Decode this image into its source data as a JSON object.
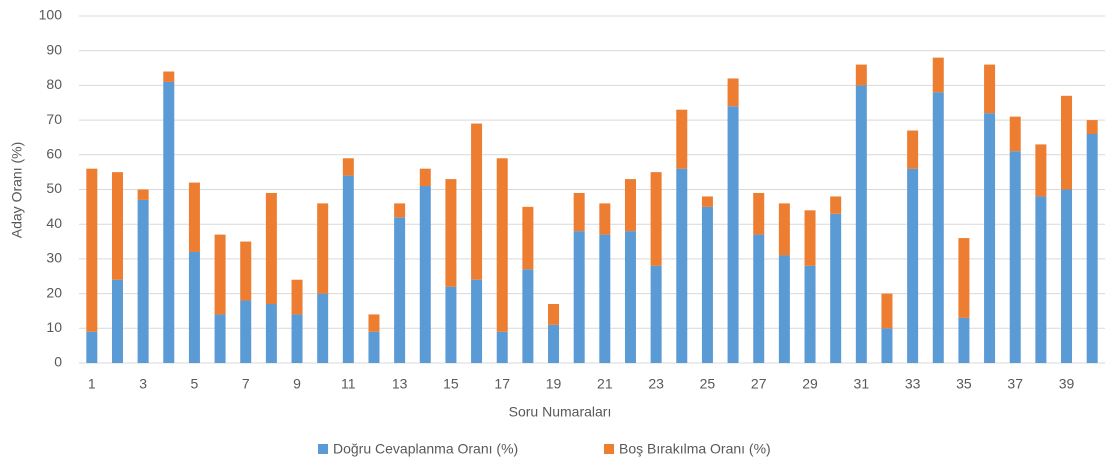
{
  "chart_data": {
    "type": "stacked-bar",
    "x_label": "Soru Numaraları",
    "y_label": "Aday Oranı (%)",
    "categories": [
      1,
      null,
      3,
      null,
      5,
      null,
      7,
      null,
      9,
      null,
      11,
      null,
      13,
      null,
      15,
      null,
      17,
      null,
      19,
      null,
      21,
      null,
      23,
      null,
      25,
      null,
      27,
      null,
      29,
      null,
      31,
      null,
      33,
      null,
      35,
      null,
      37,
      null,
      39,
      null
    ],
    "series": [
      {
        "name": "Doğru Cevaplanma Oranı (%)",
        "color": "#5b9bd5",
        "values": [
          9,
          24,
          47,
          81,
          32,
          14,
          18,
          17,
          14,
          20,
          54,
          9,
          42,
          51,
          22,
          24,
          9,
          27,
          11,
          38,
          37,
          38,
          28,
          56,
          45,
          74,
          37,
          31,
          28,
          43,
          80,
          10,
          56,
          78,
          13,
          72,
          61,
          48,
          50,
          66
        ]
      },
      {
        "name": "Boş Bırakılma Oranı (%)",
        "color": "#ed7d31",
        "values": [
          47,
          31,
          3,
          3,
          20,
          23,
          17,
          32,
          10,
          26,
          5,
          5,
          4,
          5,
          31,
          45,
          50,
          18,
          6,
          11,
          9,
          15,
          27,
          17,
          3,
          8,
          12,
          15,
          16,
          5,
          6,
          10,
          11,
          10,
          23,
          14,
          10,
          15,
          27,
          4
        ]
      }
    ],
    "ylim": [
      0,
      100
    ],
    "yticks": [
      0,
      10,
      20,
      30,
      40,
      50,
      60,
      70,
      80,
      90,
      100
    ],
    "grid": true,
    "legend": "bottom"
  }
}
